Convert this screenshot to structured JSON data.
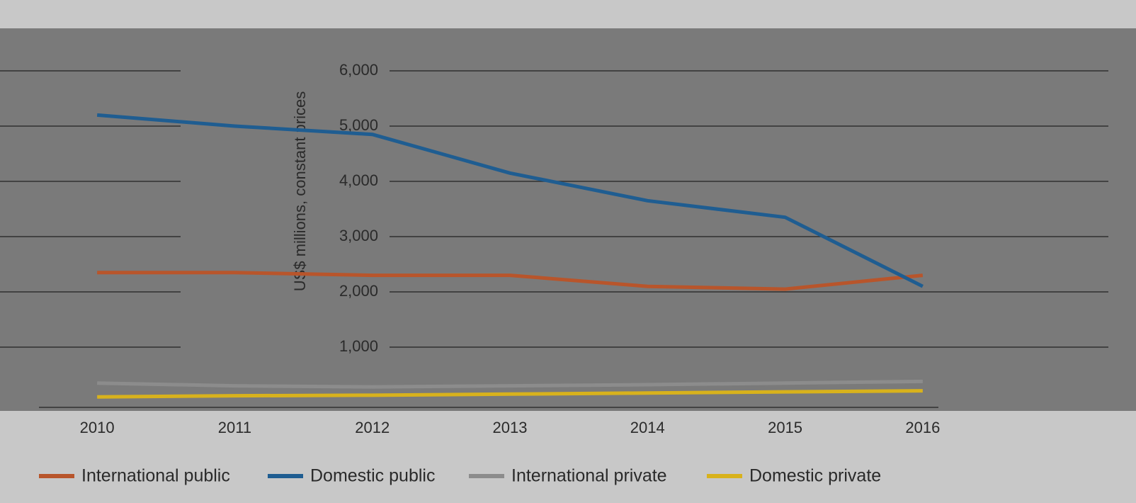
{
  "chart_data": {
    "type": "line",
    "y_label": "US$ millions, constant prices",
    "categories": [
      "2010",
      "2011",
      "2012",
      "2013",
      "2014",
      "2015",
      "2016"
    ],
    "series": [
      {
        "name": "International public",
        "color": "#b8552b",
        "values": [
          2350,
          2350,
          2300,
          2300,
          2100,
          2050,
          2300
        ]
      },
      {
        "name": "Domestic public",
        "color": "#1f5d91",
        "values": [
          5200,
          5000,
          4850,
          4150,
          3650,
          3350,
          2100
        ]
      },
      {
        "name": "International private",
        "color": "#8c8c8c",
        "values": [
          350,
          300,
          280,
          300,
          320,
          350,
          380
        ]
      },
      {
        "name": "Domestic private",
        "color": "#d8b21c",
        "values": [
          100,
          120,
          130,
          150,
          170,
          190,
          210
        ]
      }
    ],
    "ylim": [
      0,
      6000
    ],
    "yticks": [
      {
        "value": 1000,
        "label": "1,000"
      },
      {
        "value": 2000,
        "label": "2,000"
      },
      {
        "value": 3000,
        "label": "3,000"
      },
      {
        "value": 4000,
        "label": "4,000"
      },
      {
        "value": 5000,
        "label": "5,000"
      },
      {
        "value": 6000,
        "label": "6,000"
      }
    ],
    "grid": true
  }
}
